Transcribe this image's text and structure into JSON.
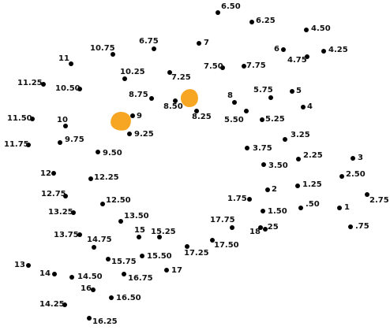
{
  "puzzle": {
    "background": "#ffffff",
    "dot_color": "#000000",
    "highlight_color": "#f6a623",
    "points": [
      {
        "label": "6.50"
      },
      {
        "label": "6.25"
      },
      {
        "label": "4.50"
      },
      {
        "label": "7"
      },
      {
        "label": "6.75"
      },
      {
        "label": "10.75"
      },
      {
        "label": "6"
      },
      {
        "label": "4.25"
      },
      {
        "label": "4.75"
      },
      {
        "label": "11"
      },
      {
        "label": "7.50"
      },
      {
        "label": "7.75"
      },
      {
        "label": "10.25"
      },
      {
        "label": "7.25"
      },
      {
        "label": "11.25"
      },
      {
        "label": "10.50"
      },
      {
        "label": "5.75"
      },
      {
        "label": "5"
      },
      {
        "label": "8.75"
      },
      {
        "label": "8"
      },
      {
        "label": "4"
      },
      {
        "label": "8.50"
      },
      {
        "label": "8.25"
      },
      {
        "label": "9"
      },
      {
        "label": "5.50"
      },
      {
        "label": "5.25"
      },
      {
        "label": "11.50"
      },
      {
        "label": "10"
      },
      {
        "label": "9.25"
      },
      {
        "label": "3.25"
      },
      {
        "label": "9.75"
      },
      {
        "label": "11.75"
      },
      {
        "label": "3.75"
      },
      {
        "label": "9.50"
      },
      {
        "label": "2.25"
      },
      {
        "label": "3"
      },
      {
        "label": "3.50"
      },
      {
        "label": "12"
      },
      {
        "label": "12.25"
      },
      {
        "label": "2.50"
      },
      {
        "label": "1.25"
      },
      {
        "label": "2"
      },
      {
        "label": "12.75"
      },
      {
        "label": "1.75"
      },
      {
        "label": "2.75"
      },
      {
        "label": "12.50"
      },
      {
        "label": ".50"
      },
      {
        "label": "1"
      },
      {
        "label": "13.25"
      },
      {
        "label": "1.50"
      },
      {
        "label": "13.50"
      },
      {
        "label": "17.75"
      },
      {
        "label": ".25"
      },
      {
        "label": "18"
      },
      {
        "label": ".75"
      },
      {
        "label": "15"
      },
      {
        "label": "15.25"
      },
      {
        "label": "13.75"
      },
      {
        "label": "14.75"
      },
      {
        "label": "17.50"
      },
      {
        "label": "17.25"
      },
      {
        "label": "15.50"
      },
      {
        "label": "15.75"
      },
      {
        "label": "13"
      },
      {
        "label": "17"
      },
      {
        "label": "14"
      },
      {
        "label": "14.50"
      },
      {
        "label": "16.75"
      },
      {
        "label": "16"
      },
      {
        "label": "16.50"
      },
      {
        "label": "14.25"
      },
      {
        "label": "16.25"
      }
    ]
  }
}
